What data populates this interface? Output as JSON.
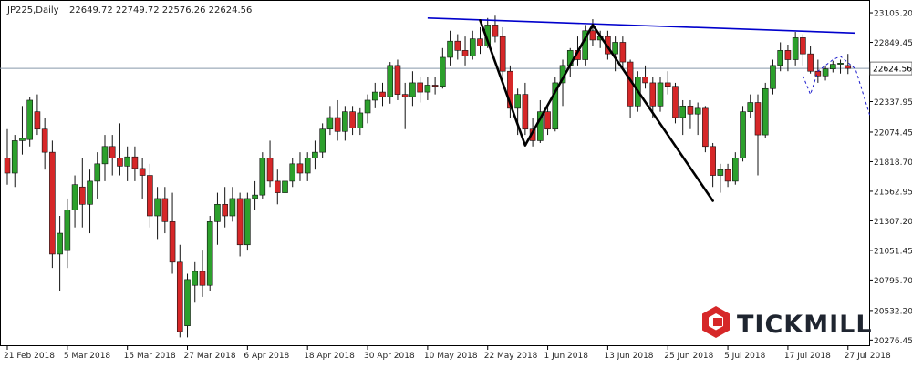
{
  "chart_data": {
    "type": "candlestick",
    "header": {
      "symbol": "JP225,Daily",
      "ohlc": "22649.72 22749.72 22576.26 22624.56"
    },
    "current_price": 22624.56,
    "current_price_label": "22624.56",
    "ylim": [
      20240,
      23200
    ],
    "y_ticks": [
      {
        "value": 23105.2,
        "label": "23105.20"
      },
      {
        "value": 22849.45,
        "label": "22849.45"
      },
      {
        "value": 22593.7,
        "label": "22593.70"
      },
      {
        "value": 22337.95,
        "label": "22337.95"
      },
      {
        "value": 22074.45,
        "label": "22074.45"
      },
      {
        "value": 21818.7,
        "label": "21818.70"
      },
      {
        "value": 21562.95,
        "label": "21562.95"
      },
      {
        "value": 21307.2,
        "label": "21307.20"
      },
      {
        "value": 21051.45,
        "label": "21051.45"
      },
      {
        "value": 20795.7,
        "label": "20795.70"
      },
      {
        "value": 20532.2,
        "label": "20532.20"
      },
      {
        "value": 20276.45,
        "label": "20276.45"
      }
    ],
    "x_ticks": [
      {
        "index": 0,
        "label": "21 Feb 2018"
      },
      {
        "index": 8,
        "label": "5 Mar 2018"
      },
      {
        "index": 16,
        "label": "15 Mar 2018"
      },
      {
        "index": 24,
        "label": "27 Mar 2018"
      },
      {
        "index": 32,
        "label": "6 Apr 2018"
      },
      {
        "index": 40,
        "label": "18 Apr 2018"
      },
      {
        "index": 48,
        "label": "30 Apr 2018"
      },
      {
        "index": 56,
        "label": "10 May 2018"
      },
      {
        "index": 64,
        "label": "22 May 2018"
      },
      {
        "index": 72,
        "label": "1 Jun 2018"
      },
      {
        "index": 80,
        "label": "13 Jun 2018"
      },
      {
        "index": 88,
        "label": "25 Jun 2018"
      },
      {
        "index": 96,
        "label": "5 Jul 2018"
      },
      {
        "index": 104,
        "label": "17 Jul 2018"
      },
      {
        "index": 112,
        "label": "27 Jul 2018"
      }
    ],
    "colors": {
      "bull": "#2ca02c",
      "bear": "#d62728",
      "trendline": "#0000cc",
      "pattern": "#000000",
      "projection": "#1a1acc",
      "price_line": "#8899aa",
      "text": "#222222",
      "brand_red": "#d62728",
      "brand_dark": "#1f2530"
    },
    "candles": [
      {
        "o": 21850,
        "h": 22100,
        "l": 21620,
        "c": 21720
      },
      {
        "o": 21720,
        "h": 22050,
        "l": 21600,
        "c": 22000
      },
      {
        "o": 22000,
        "h": 22300,
        "l": 21880,
        "c": 22020
      },
      {
        "o": 22010,
        "h": 22380,
        "l": 21950,
        "c": 22350
      },
      {
        "o": 22250,
        "h": 22400,
        "l": 22050,
        "c": 22100
      },
      {
        "o": 22100,
        "h": 22200,
        "l": 21750,
        "c": 21900
      },
      {
        "o": 21900,
        "h": 22000,
        "l": 20900,
        "c": 21020
      },
      {
        "o": 21020,
        "h": 21350,
        "l": 20700,
        "c": 21200
      },
      {
        "o": 21050,
        "h": 21500,
        "l": 20900,
        "c": 21400
      },
      {
        "o": 21400,
        "h": 21700,
        "l": 21250,
        "c": 21620
      },
      {
        "o": 21600,
        "h": 21850,
        "l": 21250,
        "c": 21450
      },
      {
        "o": 21450,
        "h": 21750,
        "l": 21200,
        "c": 21650
      },
      {
        "o": 21650,
        "h": 21900,
        "l": 21500,
        "c": 21800
      },
      {
        "o": 21800,
        "h": 22050,
        "l": 21650,
        "c": 21950
      },
      {
        "o": 21950,
        "h": 22050,
        "l": 21700,
        "c": 21850
      },
      {
        "o": 21850,
        "h": 22150,
        "l": 21700,
        "c": 21780
      },
      {
        "o": 21780,
        "h": 21950,
        "l": 21650,
        "c": 21860
      },
      {
        "o": 21860,
        "h": 21950,
        "l": 21650,
        "c": 21760
      },
      {
        "o": 21760,
        "h": 21850,
        "l": 21500,
        "c": 21700
      },
      {
        "o": 21700,
        "h": 21800,
        "l": 21250,
        "c": 21350
      },
      {
        "o": 21350,
        "h": 21600,
        "l": 21150,
        "c": 21500
      },
      {
        "o": 21500,
        "h": 21600,
        "l": 21200,
        "c": 21300
      },
      {
        "o": 21300,
        "h": 21550,
        "l": 20850,
        "c": 20950
      },
      {
        "o": 20950,
        "h": 21100,
        "l": 20300,
        "c": 20350
      },
      {
        "o": 20400,
        "h": 20850,
        "l": 20300,
        "c": 20800
      },
      {
        "o": 20750,
        "h": 20950,
        "l": 20600,
        "c": 20870
      },
      {
        "o": 20870,
        "h": 21050,
        "l": 20650,
        "c": 20750
      },
      {
        "o": 20750,
        "h": 21350,
        "l": 20700,
        "c": 21300
      },
      {
        "o": 21300,
        "h": 21550,
        "l": 21100,
        "c": 21450
      },
      {
        "o": 21450,
        "h": 21600,
        "l": 21250,
        "c": 21350
      },
      {
        "o": 21350,
        "h": 21600,
        "l": 21300,
        "c": 21500
      },
      {
        "o": 21500,
        "h": 21550,
        "l": 21000,
        "c": 21100
      },
      {
        "o": 21100,
        "h": 21550,
        "l": 21050,
        "c": 21500
      },
      {
        "o": 21500,
        "h": 21650,
        "l": 21400,
        "c": 21530
      },
      {
        "o": 21530,
        "h": 21900,
        "l": 21500,
        "c": 21850
      },
      {
        "o": 21850,
        "h": 22000,
        "l": 21600,
        "c": 21650
      },
      {
        "o": 21650,
        "h": 21750,
        "l": 21450,
        "c": 21550
      },
      {
        "o": 21550,
        "h": 21800,
        "l": 21500,
        "c": 21650
      },
      {
        "o": 21650,
        "h": 21850,
        "l": 21600,
        "c": 21800
      },
      {
        "o": 21800,
        "h": 21900,
        "l": 21650,
        "c": 21720
      },
      {
        "o": 21720,
        "h": 21900,
        "l": 21650,
        "c": 21850
      },
      {
        "o": 21850,
        "h": 22000,
        "l": 21750,
        "c": 21900
      },
      {
        "o": 21900,
        "h": 22150,
        "l": 21850,
        "c": 22100
      },
      {
        "o": 22100,
        "h": 22300,
        "l": 22050,
        "c": 22200
      },
      {
        "o": 22200,
        "h": 22350,
        "l": 22000,
        "c": 22080
      },
      {
        "o": 22080,
        "h": 22300,
        "l": 22000,
        "c": 22250
      },
      {
        "o": 22250,
        "h": 22300,
        "l": 22050,
        "c": 22110
      },
      {
        "o": 22110,
        "h": 22280,
        "l": 22050,
        "c": 22240
      },
      {
        "o": 22240,
        "h": 22400,
        "l": 22150,
        "c": 22350
      },
      {
        "o": 22350,
        "h": 22500,
        "l": 22280,
        "c": 22420
      },
      {
        "o": 22420,
        "h": 22500,
        "l": 22300,
        "c": 22380
      },
      {
        "o": 22380,
        "h": 22680,
        "l": 22320,
        "c": 22650
      },
      {
        "o": 22650,
        "h": 22700,
        "l": 22350,
        "c": 22400
      },
      {
        "o": 22400,
        "h": 22500,
        "l": 22100,
        "c": 22380
      },
      {
        "o": 22380,
        "h": 22600,
        "l": 22300,
        "c": 22500
      },
      {
        "o": 22500,
        "h": 22550,
        "l": 22330,
        "c": 22420
      },
      {
        "o": 22420,
        "h": 22550,
        "l": 22350,
        "c": 22480
      },
      {
        "o": 22480,
        "h": 22550,
        "l": 22400,
        "c": 22470
      },
      {
        "o": 22470,
        "h": 22800,
        "l": 22450,
        "c": 22720
      },
      {
        "o": 22720,
        "h": 22950,
        "l": 22650,
        "c": 22860
      },
      {
        "o": 22860,
        "h": 22920,
        "l": 22700,
        "c": 22780
      },
      {
        "o": 22780,
        "h": 22900,
        "l": 22650,
        "c": 22730
      },
      {
        "o": 22730,
        "h": 22950,
        "l": 22700,
        "c": 22880
      },
      {
        "o": 22880,
        "h": 22980,
        "l": 22750,
        "c": 22820
      },
      {
        "o": 22820,
        "h": 23060,
        "l": 22800,
        "c": 23000
      },
      {
        "o": 23000,
        "h": 23080,
        "l": 22850,
        "c": 22900
      },
      {
        "o": 22900,
        "h": 22980,
        "l": 22550,
        "c": 22600
      },
      {
        "o": 22600,
        "h": 22650,
        "l": 22200,
        "c": 22280
      },
      {
        "o": 22280,
        "h": 22450,
        "l": 22050,
        "c": 22400
      },
      {
        "o": 22400,
        "h": 22500,
        "l": 22050,
        "c": 22100
      },
      {
        "o": 22100,
        "h": 22200,
        "l": 21950,
        "c": 22000
      },
      {
        "o": 22000,
        "h": 22350,
        "l": 21980,
        "c": 22250
      },
      {
        "o": 22250,
        "h": 22300,
        "l": 22050,
        "c": 22100
      },
      {
        "o": 22100,
        "h": 22550,
        "l": 22080,
        "c": 22500
      },
      {
        "o": 22500,
        "h": 22700,
        "l": 22300,
        "c": 22650
      },
      {
        "o": 22650,
        "h": 22800,
        "l": 22550,
        "c": 22780
      },
      {
        "o": 22780,
        "h": 22900,
        "l": 22650,
        "c": 22700
      },
      {
        "o": 22700,
        "h": 23000,
        "l": 22650,
        "c": 22950
      },
      {
        "o": 22950,
        "h": 23050,
        "l": 22820,
        "c": 22870
      },
      {
        "o": 22870,
        "h": 22950,
        "l": 22800,
        "c": 22900
      },
      {
        "o": 22900,
        "h": 22950,
        "l": 22700,
        "c": 22750
      },
      {
        "o": 22750,
        "h": 22900,
        "l": 22600,
        "c": 22850
      },
      {
        "o": 22850,
        "h": 22900,
        "l": 22620,
        "c": 22680
      },
      {
        "o": 22680,
        "h": 22700,
        "l": 22200,
        "c": 22300
      },
      {
        "o": 22300,
        "h": 22600,
        "l": 22250,
        "c": 22550
      },
      {
        "o": 22550,
        "h": 22650,
        "l": 22450,
        "c": 22500
      },
      {
        "o": 22500,
        "h": 22550,
        "l": 22200,
        "c": 22300
      },
      {
        "o": 22300,
        "h": 22550,
        "l": 22250,
        "c": 22500
      },
      {
        "o": 22500,
        "h": 22600,
        "l": 22400,
        "c": 22470
      },
      {
        "o": 22470,
        "h": 22500,
        "l": 22150,
        "c": 22200
      },
      {
        "o": 22200,
        "h": 22350,
        "l": 22050,
        "c": 22300
      },
      {
        "o": 22300,
        "h": 22350,
        "l": 22100,
        "c": 22230
      },
      {
        "o": 22230,
        "h": 22330,
        "l": 22050,
        "c": 22280
      },
      {
        "o": 22280,
        "h": 22300,
        "l": 21900,
        "c": 21950
      },
      {
        "o": 21950,
        "h": 21980,
        "l": 21600,
        "c": 21700
      },
      {
        "o": 21700,
        "h": 21800,
        "l": 21550,
        "c": 21750
      },
      {
        "o": 21750,
        "h": 21800,
        "l": 21600,
        "c": 21650
      },
      {
        "o": 21650,
        "h": 21900,
        "l": 21620,
        "c": 21850
      },
      {
        "o": 21850,
        "h": 22300,
        "l": 21820,
        "c": 22250
      },
      {
        "o": 22250,
        "h": 22400,
        "l": 22200,
        "c": 22330
      },
      {
        "o": 22330,
        "h": 22400,
        "l": 21700,
        "c": 22050
      },
      {
        "o": 22050,
        "h": 22500,
        "l": 22020,
        "c": 22450
      },
      {
        "o": 22450,
        "h": 22700,
        "l": 22400,
        "c": 22650
      },
      {
        "o": 22650,
        "h": 22850,
        "l": 22600,
        "c": 22780
      },
      {
        "o": 22780,
        "h": 22830,
        "l": 22600,
        "c": 22700
      },
      {
        "o": 22700,
        "h": 22940,
        "l": 22650,
        "c": 22890
      },
      {
        "o": 22890,
        "h": 22920,
        "l": 22650,
        "c": 22750
      },
      {
        "o": 22750,
        "h": 22820,
        "l": 22580,
        "c": 22600
      },
      {
        "o": 22600,
        "h": 22700,
        "l": 22500,
        "c": 22560
      },
      {
        "o": 22560,
        "h": 22650,
        "l": 22520,
        "c": 22620
      },
      {
        "o": 22620,
        "h": 22690,
        "l": 22590,
        "c": 22660
      },
      {
        "o": 22660,
        "h": 22700,
        "l": 22580,
        "c": 22670
      },
      {
        "o": 22649.72,
        "h": 22749.72,
        "l": 22576.26,
        "c": 22624.56
      }
    ],
    "trendline": {
      "from": {
        "index": 56,
        "value": 23060
      },
      "to": {
        "index": 113,
        "value": 22930
      }
    },
    "pattern_lines": [
      {
        "from": {
          "index": 63,
          "value": 23040
        },
        "to": {
          "index": 69,
          "value": 21960
        }
      },
      {
        "from": {
          "index": 69,
          "value": 21960
        },
        "to": {
          "index": 78,
          "value": 23000
        }
      },
      {
        "from": {
          "index": 78,
          "value": 23000
        },
        "to": {
          "index": 94,
          "value": 21480
        }
      }
    ],
    "projection": [
      {
        "index": 106,
        "value": 22560
      },
      {
        "index": 107,
        "value": 22400
      },
      {
        "index": 108,
        "value": 22600
      },
      {
        "index": 110,
        "value": 22700
      },
      {
        "index": 111,
        "value": 22730
      },
      {
        "index": 113,
        "value": 22620
      },
      {
        "index": 115,
        "value": 22200
      }
    ]
  },
  "branding": {
    "logo_text": "TICKMILL"
  }
}
